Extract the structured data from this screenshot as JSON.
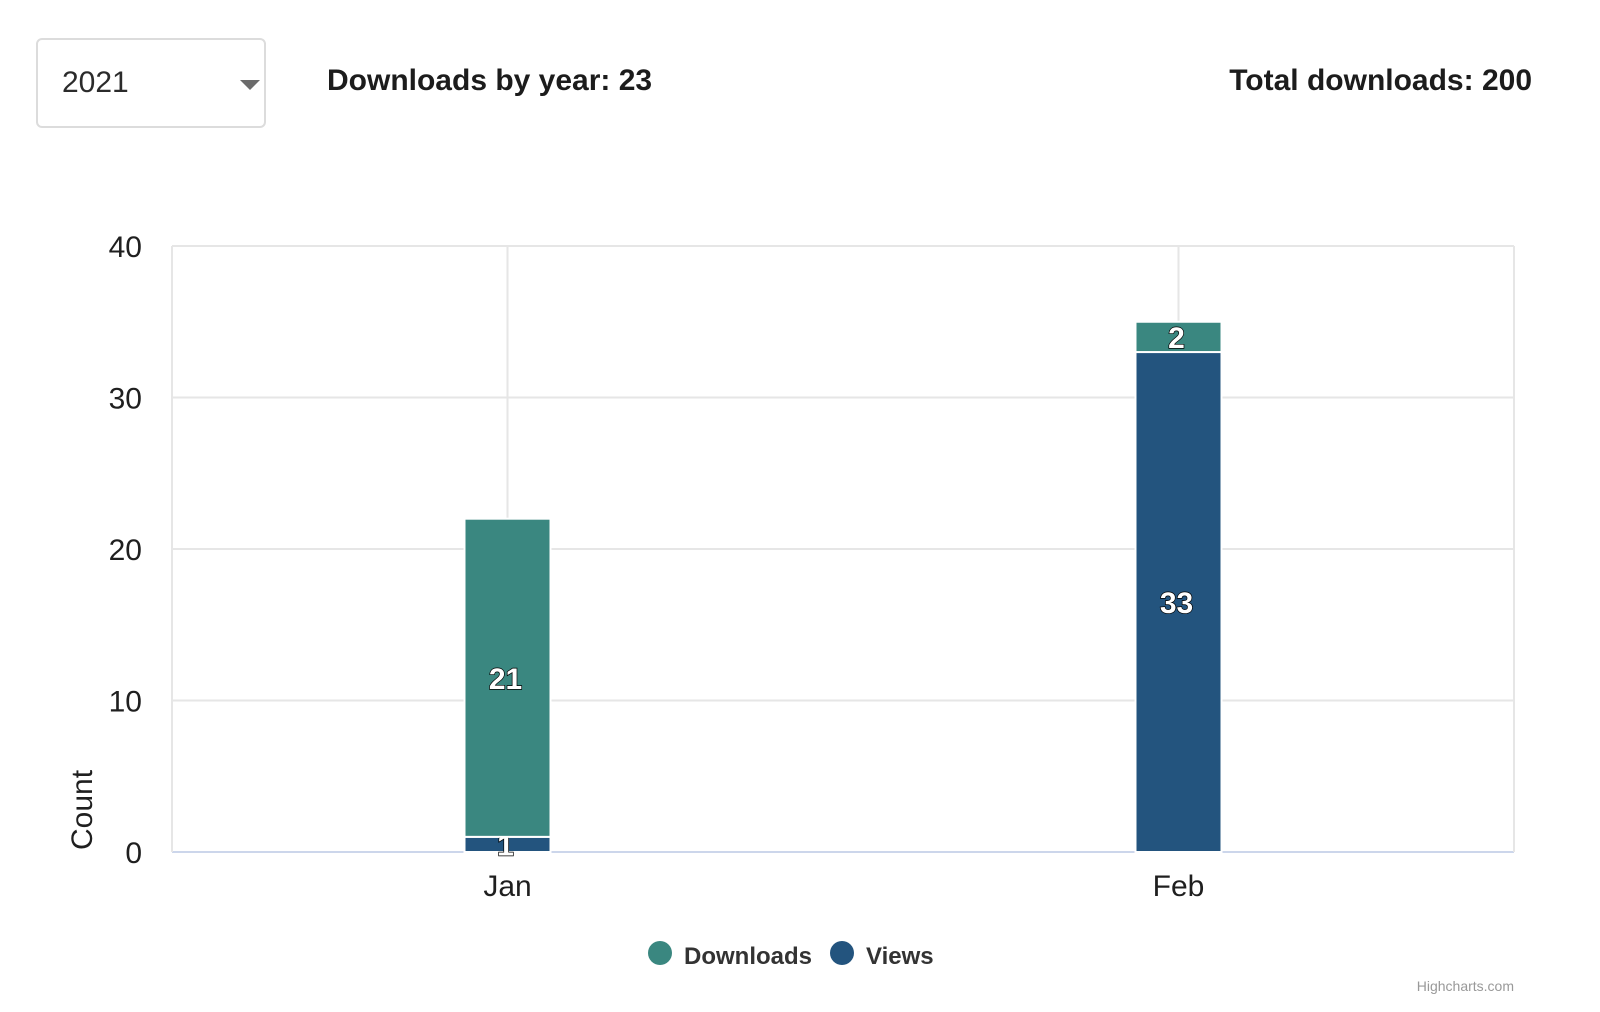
{
  "filter": {
    "year_value": "2021"
  },
  "stats": {
    "by_year_label": "Downloads by year: 23",
    "total_label": "Total downloads: 200"
  },
  "chart_data": {
    "type": "bar",
    "stacked": true,
    "categories": [
      "Jan",
      "Feb"
    ],
    "series": [
      {
        "name": "Downloads",
        "color": "#3a8780",
        "values": [
          21,
          2
        ]
      },
      {
        "name": "Views",
        "color": "#23547e",
        "values": [
          1,
          33
        ]
      }
    ],
    "title": "",
    "xlabel": "",
    "ylabel": "Count",
    "ylim": [
      0,
      40
    ],
    "yticks": [
      0,
      10,
      20,
      30,
      40
    ],
    "grid": true,
    "legend": "bottom-center",
    "data_labels": true,
    "credits": "Highcharts.com"
  }
}
